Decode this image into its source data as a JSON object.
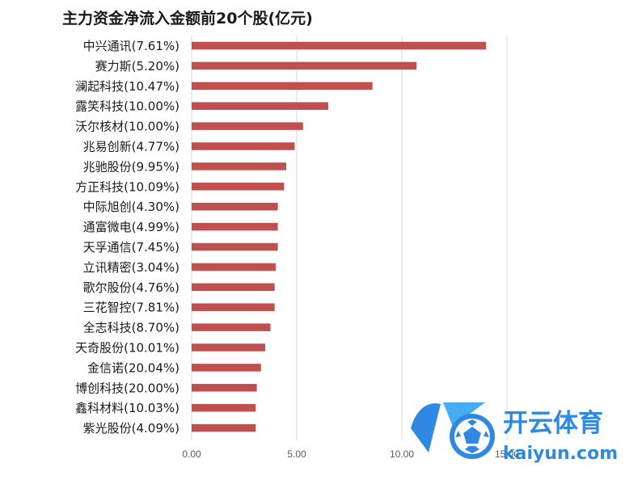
{
  "chart_data": {
    "type": "bar",
    "orientation": "horizontal",
    "title": "主力资金净流入金额前20个股(亿元)",
    "xlabel": "",
    "ylabel": "",
    "xlim": [
      0,
      15
    ],
    "ticks": [
      "0.00",
      "5.00",
      "10.00",
      "15.00"
    ],
    "tick_values": [
      0,
      5,
      10,
      15
    ],
    "grid": true,
    "legend": "none",
    "bar_color": "#c0504d",
    "grid_color": "#d9d9d9",
    "categories": [
      "中兴通讯(7.61%)",
      "赛力斯(5.20%)",
      "澜起科技(10.47%)",
      "露笑科技(10.00%)",
      "沃尔核材(10.00%)",
      "兆易创新(4.77%)",
      "兆驰股份(9.95%)",
      "方正科技(10.09%)",
      "中际旭创(4.30%)",
      "通富微电(4.99%)",
      "天孚通信(7.45%)",
      "立讯精密(3.04%)",
      "歌尔股份(4.76%)",
      "三花智控(7.81%)",
      "全志科技(8.70%)",
      "天奇股份(10.01%)",
      "金信诺(20.04%)",
      "博创科技(20.00%)",
      "鑫科材料(10.03%)",
      "紫光股份(4.09%)"
    ],
    "values": [
      14.0,
      10.7,
      8.6,
      6.5,
      5.3,
      4.9,
      4.5,
      4.4,
      4.1,
      4.1,
      4.1,
      4.0,
      3.95,
      3.95,
      3.75,
      3.5,
      3.3,
      3.1,
      3.05,
      3.05
    ]
  },
  "watermark": {
    "brand_cn": "开云体育",
    "brand_en": "kaiyun.com",
    "logo_icon": "soccer-ball-k-icon",
    "color": "#1e7fe0"
  }
}
